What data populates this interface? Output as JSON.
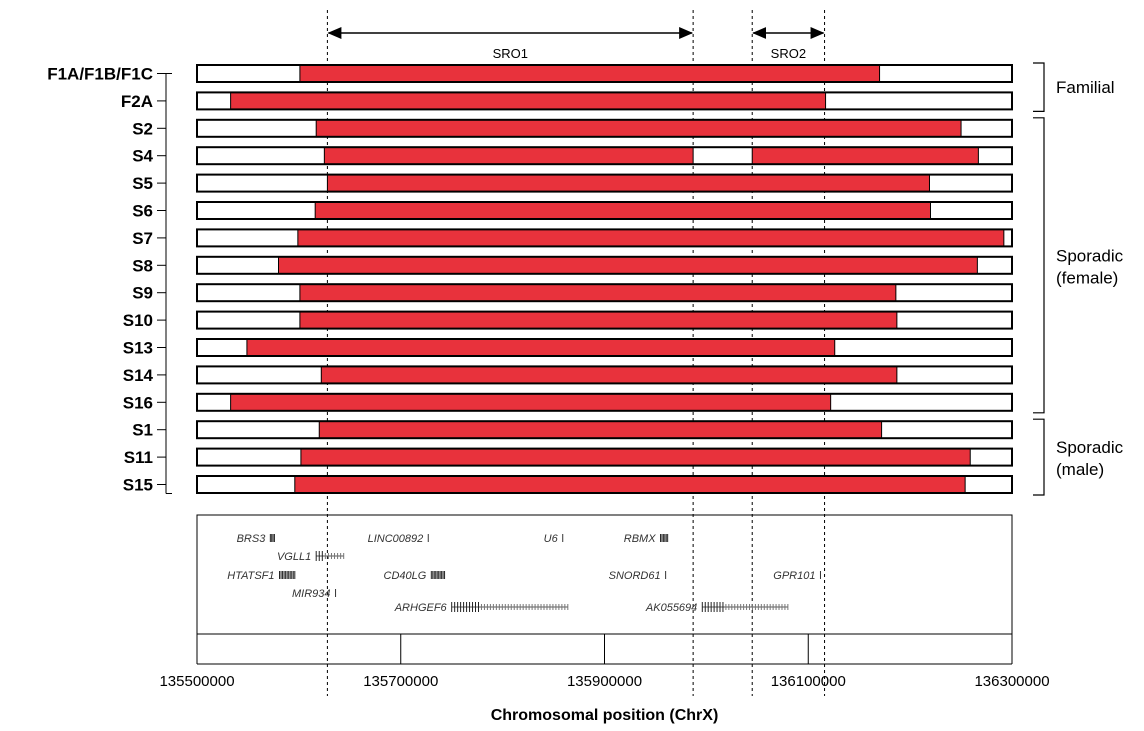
{
  "chart_data": {
    "type": "genomic-interval",
    "xlabel": "Chromosomal position (ChrX)",
    "xlim": [
      135500000,
      136300000
    ],
    "xticks": [
      135500000,
      135700000,
      135900000,
      136100000,
      136300000
    ],
    "colors": {
      "deleted": "#e8323c",
      "normal": "#ffffff",
      "outline": "#000000"
    },
    "sro": [
      {
        "name": "SRO1",
        "start": 135628000,
        "end": 135987000
      },
      {
        "name": "SRO2",
        "start": 136045000,
        "end": 136116000
      }
    ],
    "groups": [
      {
        "name": "Familial",
        "rows": [
          "F1A/F1B/F1C",
          "F2A"
        ]
      },
      {
        "name": "Sporadic (female)",
        "rows": [
          "S2",
          "S4",
          "S5",
          "S6",
          "S7",
          "S8",
          "S9",
          "S10",
          "S13",
          "S14",
          "S16"
        ]
      },
      {
        "name": "Sporadic (male)",
        "rows": [
          "S1",
          "S11",
          "S15"
        ]
      }
    ],
    "series": [
      {
        "name": "F1A/F1B/F1C",
        "segments": [
          [
            135601000,
            136170000
          ]
        ]
      },
      {
        "name": "F2A",
        "segments": [
          [
            135533000,
            136117000
          ]
        ]
      },
      {
        "name": "S2",
        "segments": [
          [
            135617000,
            136250000
          ]
        ]
      },
      {
        "name": "S4",
        "segments": [
          [
            135625000,
            135987000
          ],
          [
            136045000,
            136267000
          ]
        ]
      },
      {
        "name": "S5",
        "segments": [
          [
            135628000,
            136219000
          ]
        ]
      },
      {
        "name": "S6",
        "segments": [
          [
            135616000,
            136220000
          ]
        ]
      },
      {
        "name": "S7",
        "segments": [
          [
            135599000,
            136292000
          ]
        ]
      },
      {
        "name": "S8",
        "segments": [
          [
            135580000,
            136266000
          ]
        ]
      },
      {
        "name": "S9",
        "segments": [
          [
            135601000,
            136186000
          ]
        ]
      },
      {
        "name": "S10",
        "segments": [
          [
            135601000,
            136187000
          ]
        ]
      },
      {
        "name": "S13",
        "segments": [
          [
            135549000,
            136126000
          ]
        ]
      },
      {
        "name": "S14",
        "segments": [
          [
            135622000,
            136187000
          ]
        ]
      },
      {
        "name": "S16",
        "segments": [
          [
            135533000,
            136122000
          ]
        ]
      },
      {
        "name": "S1",
        "segments": [
          [
            135620000,
            136172000
          ]
        ]
      },
      {
        "name": "S11",
        "segments": [
          [
            135602000,
            136259000
          ]
        ]
      },
      {
        "name": "S15",
        "segments": [
          [
            135596000,
            136254000
          ]
        ]
      }
    ],
    "genes": [
      {
        "name": "BRS3",
        "start": 135572000,
        "end": 135576000,
        "type": "cluster"
      },
      {
        "name": "VGLL1",
        "start": 135617000,
        "end": 135644000,
        "type": "gene"
      },
      {
        "name": "HTATSF1",
        "start": 135581000,
        "end": 135596000,
        "type": "cluster"
      },
      {
        "name": "MIR934",
        "start": 135636000,
        "end": 135637000,
        "type": "tick"
      },
      {
        "name": "LINC00892",
        "start": 135727000,
        "end": 135729000,
        "type": "tick"
      },
      {
        "name": "CD40LG",
        "start": 135730000,
        "end": 135743000,
        "type": "cluster"
      },
      {
        "name": "ARHGEF6",
        "start": 135750000,
        "end": 135864000,
        "type": "gene"
      },
      {
        "name": "U6",
        "start": 135859000,
        "end": 135860000,
        "type": "tick"
      },
      {
        "name": "RBMX",
        "start": 135955000,
        "end": 135962000,
        "type": "cluster"
      },
      {
        "name": "SNORD61",
        "start": 135960000,
        "end": 135961000,
        "type": "tick"
      },
      {
        "name": "AK055694",
        "start": 135996000,
        "end": 136080000,
        "type": "gene"
      },
      {
        "name": "GPR101",
        "start": 136112000,
        "end": 136113000,
        "type": "tick"
      }
    ]
  }
}
